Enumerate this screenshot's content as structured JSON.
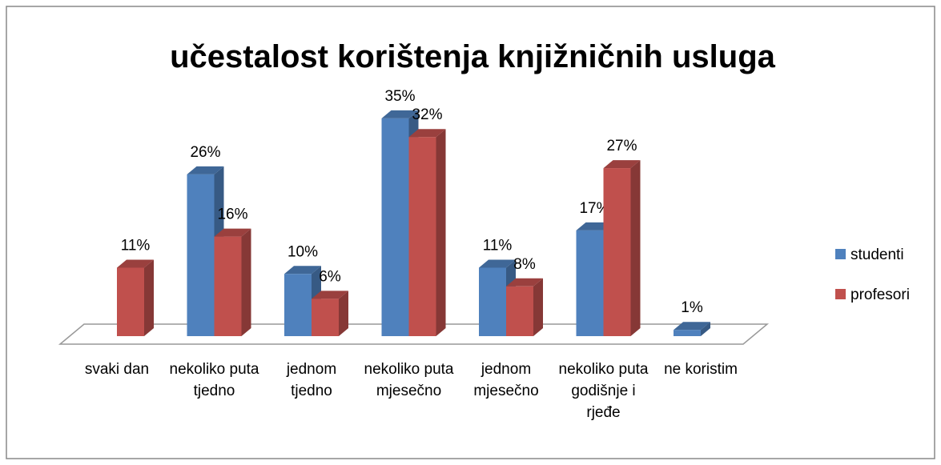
{
  "chart_data": {
    "type": "bar3d",
    "title": "učestalost korištenja knjižničnih usluga",
    "categories": [
      "svaki dan",
      "nekoliko puta tjedno",
      "jednom tjedno",
      "nekoliko puta mjesečno",
      "jednom mjesečno",
      "nekoliko puta godišnje i rjeđe",
      "ne koristim"
    ],
    "series": [
      {
        "name": "studenti",
        "color": "#4f81bd",
        "values": [
          null,
          26,
          10,
          35,
          11,
          17,
          1
        ],
        "value_labels": [
          null,
          "26%",
          "10%",
          "35%",
          "11%",
          "17%",
          "1%"
        ]
      },
      {
        "name": "profesori",
        "color": "#c0504d",
        "values": [
          11,
          16,
          6,
          32,
          8,
          27,
          null
        ],
        "value_labels": [
          "11%",
          "16%",
          "6%",
          "32%",
          "8%",
          "27%",
          null
        ]
      }
    ],
    "ylim": [
      0,
      40
    ],
    "legend": "right"
  }
}
